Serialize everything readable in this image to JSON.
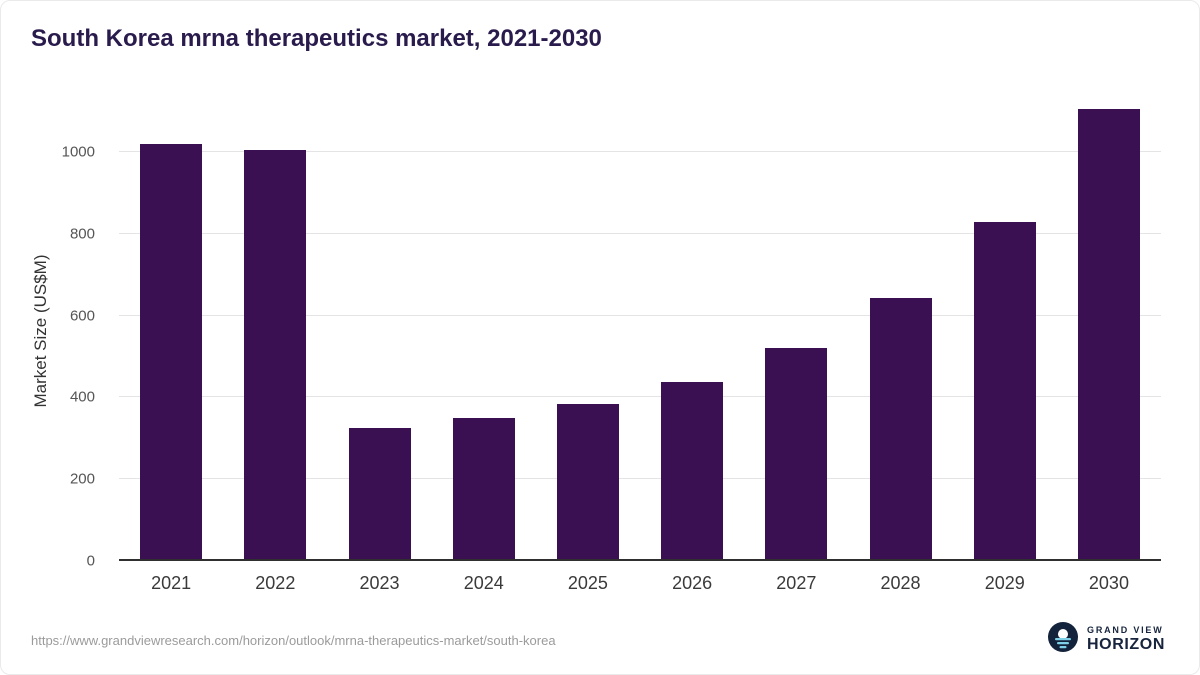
{
  "title": "South Korea mrna therapeutics market, 2021-2030",
  "footer": {
    "source_url": "https://www.grandviewresearch.com/horizon/outlook/mrna-therapeutics-market/south-korea",
    "logo": {
      "line1": "GRAND VIEW",
      "line2": "HORIZON"
    }
  },
  "colors": {
    "bar": "#3b1053",
    "title_text": "#2a1b4d",
    "gridline": "#e4e4e4",
    "axis_line": "#2f2f2f",
    "logo_navy": "#14233c",
    "logo_blue": "#7fd1e8"
  },
  "chart_data": {
    "type": "bar",
    "title": "South Korea mrna therapeutics market, 2021-2030",
    "categories": [
      "2021",
      "2022",
      "2023",
      "2024",
      "2025",
      "2026",
      "2027",
      "2028",
      "2029",
      "2030"
    ],
    "values": [
      1020,
      1005,
      325,
      350,
      383,
      437,
      520,
      643,
      830,
      1105
    ],
    "xlabel": "",
    "ylabel": "Market Size (US$M)",
    "ylim": [
      0,
      1125
    ],
    "yticks": [
      0,
      200,
      400,
      600,
      800,
      1000
    ],
    "grid": "horizontal",
    "legend": false,
    "bar_color": "#3b1053"
  }
}
